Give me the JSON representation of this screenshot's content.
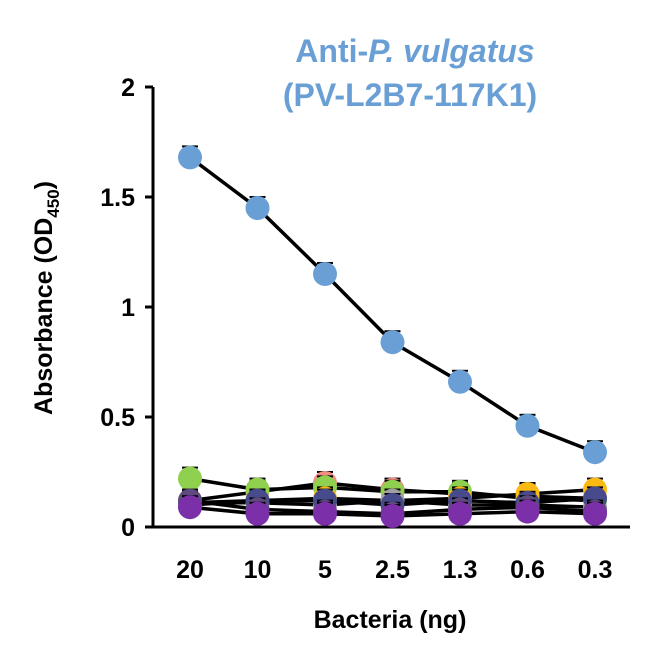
{
  "chart_data": {
    "type": "line",
    "title": {
      "line1_prefix": "Anti-",
      "line1_italic": "P. vulgatus",
      "line2": "(PV-L2B7-117K1)",
      "color": "#6A9FD6"
    },
    "xlabel": "Bacteria (ng)",
    "ylabel": {
      "main": "Absorbance (OD",
      "sub": "450",
      "close": ")"
    },
    "categories": [
      "20",
      "10",
      "5",
      "2.5",
      "1.3",
      "0.6",
      "0.3"
    ],
    "ylim": [
      0,
      2
    ],
    "yticks": [
      0,
      0.5,
      1,
      1.5,
      2
    ],
    "ytick_labels": [
      "0",
      "0.5",
      "1",
      "1.5",
      "2"
    ],
    "line_color": "#000000",
    "grid": false,
    "legend": "none",
    "series": [
      {
        "color": "#F28B82",
        "values": [
          0.12,
          0.16,
          0.2,
          0.17,
          0.15,
          0.14,
          0.13
        ]
      },
      {
        "color": "#8FD14F",
        "values": [
          0.22,
          0.17,
          0.18,
          0.16,
          0.16,
          0.13,
          0.12
        ]
      },
      {
        "color": "#FDB913",
        "values": [
          0.1,
          0.12,
          0.13,
          0.12,
          0.13,
          0.15,
          0.17
        ]
      },
      {
        "color": "#A0A0A0",
        "values": [
          0.11,
          0.11,
          0.1,
          0.12,
          0.1,
          0.1,
          0.09
        ]
      },
      {
        "color": "#474B8C",
        "values": [
          0.11,
          0.12,
          0.12,
          0.1,
          0.12,
          0.11,
          0.13
        ]
      },
      {
        "color": "#5E4A7E",
        "values": [
          0.12,
          0.08,
          0.07,
          0.06,
          0.08,
          0.09,
          0.07
        ]
      },
      {
        "color": "#7B2FA8",
        "values": [
          0.09,
          0.06,
          0.06,
          0.05,
          0.06,
          0.07,
          0.06
        ]
      },
      {
        "color": "#6A9FD6",
        "values": [
          1.68,
          1.45,
          1.15,
          0.84,
          0.66,
          0.46,
          0.34
        ]
      }
    ]
  }
}
